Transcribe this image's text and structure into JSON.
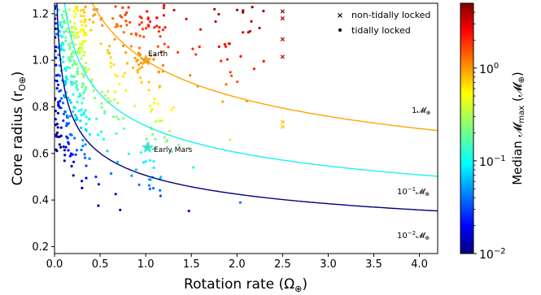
{
  "chart_data": {
    "type": "scatter",
    "xlabel": "Rotation rate (Ω",
    "xlabel_sub": "⊕",
    "xlabel_close": ")",
    "ylabel": "Core radius (r",
    "ylabel_sub": "O⊕",
    "ylabel_close": ")",
    "xlim": [
      0,
      4.2
    ],
    "ylim": [
      0.17,
      1.245
    ],
    "xticks": [
      "0.0",
      "0.5",
      "1.0",
      "1.5",
      "2.0",
      "2.5",
      "3.0",
      "3.5",
      "4.0"
    ],
    "xtick_values": [
      0,
      0.5,
      1.0,
      1.5,
      2.0,
      2.5,
      3.0,
      3.5,
      4.0
    ],
    "yticks": [
      "0.2",
      "0.4",
      "0.6",
      "0.8",
      "1.0",
      "1.2"
    ],
    "ytick_values": [
      0.2,
      0.4,
      0.6,
      0.8,
      1.0,
      1.2
    ],
    "colorbar": {
      "label": "Median 𝓜",
      "label_sub": "max",
      "label_close": " (𝓜",
      "label_sub2": "⊕",
      "label_end": ")",
      "scale": "log",
      "range": [
        0.01,
        5
      ],
      "ticks": [
        {
          "label": "10",
          "exp": "−2",
          "value": 0.01
        },
        {
          "label": "10",
          "exp": "−1",
          "value": 0.1
        },
        {
          "label": "10",
          "exp": "0",
          "value": 1
        }
      ],
      "colormap": "jet"
    },
    "legend": {
      "placement": "top-right",
      "entries": [
        {
          "marker": "x",
          "label": "non-tidally locked"
        },
        {
          "marker": "dot",
          "label": "tidally locked"
        }
      ]
    },
    "curves": [
      {
        "label": "1𝓜",
        "label_sub": "⊕",
        "mass": 1,
        "color": "#ffa500",
        "k": 0.9978
      },
      {
        "label": "10",
        "label_exp": "−1",
        "label_tail": "𝓜",
        "label_sub": "⊕",
        "mass": 0.1,
        "color": "#20f0f0",
        "k": 0.2665
      },
      {
        "label": "10",
        "label_exp": "−2",
        "label_tail": "𝓜",
        "label_sub": "⊕",
        "mass": 0.01,
        "color": "#00007f",
        "k": 0.0653
      }
    ],
    "annotations": [
      {
        "label": "Earth",
        "x": 1.0,
        "y": 1.0,
        "marker": "star",
        "color": "#f5a020"
      },
      {
        "label": "Early Mars",
        "x": 1.02,
        "y": 0.625,
        "marker": "star",
        "color": "#40e0d0"
      }
    ],
    "non_tidally_locked": [
      {
        "x": 2.5,
        "y": 1.21,
        "m": 4.5
      },
      {
        "x": 2.5,
        "y": 1.18,
        "m": 4.0
      },
      {
        "x": 2.5,
        "y": 1.09,
        "m": 3.5
      },
      {
        "x": 2.5,
        "y": 1.015,
        "m": 3.0
      },
      {
        "x": 2.5,
        "y": 0.735,
        "m": 0.7
      },
      {
        "x": 2.5,
        "y": 0.715,
        "m": 0.7
      }
    ]
  }
}
